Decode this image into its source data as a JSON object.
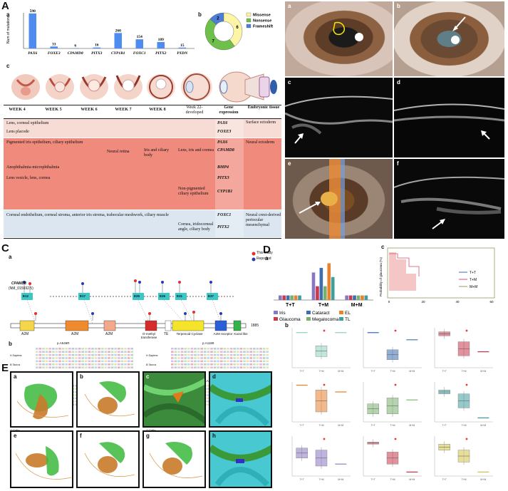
{
  "panels": {
    "A": "A",
    "B": "B",
    "C": "C",
    "D": "D",
    "E": "E"
  },
  "sublabels": {
    "a": "a",
    "b": "b",
    "c": "c",
    "d": "d",
    "e": "e",
    "f": "f",
    "g": "g",
    "h": "h"
  },
  "chart_data": [
    {
      "id": "Aa",
      "type": "bar",
      "ylabel": "Num of mutations",
      "categories": [
        "PAX6",
        "FOXE3",
        "CPAMD8",
        "PITX3",
        "CYP1B1",
        "FOXC1",
        "PITX2",
        "PXDN"
      ],
      "values": [
        590,
        33,
        6,
        16,
        260,
        154,
        109,
        15
      ],
      "ylim": [
        0,
        600
      ],
      "color": "#4f8cf0"
    },
    {
      "id": "Ab",
      "type": "pie",
      "legend": [
        "Missense",
        "Nonsense",
        "Frameshift"
      ],
      "values": [
        6,
        7,
        2
      ],
      "colors": [
        "#fdf5a6",
        "#6ec04b",
        "#4c7ed8"
      ]
    },
    {
      "id": "Da",
      "type": "bar",
      "categories": [
        "T+T",
        "T+M",
        "M+M"
      ],
      "series": [
        {
          "name": "Iris",
          "values": [
            1,
            6,
            1
          ]
        },
        {
          "name": "Glaucoma",
          "values": [
            1,
            3,
            1
          ]
        },
        {
          "name": "Cataract",
          "values": [
            1,
            7,
            1
          ]
        },
        {
          "name": "Megalocoma",
          "values": [
            1,
            3,
            1
          ]
        },
        {
          "name": "EL",
          "values": [
            1,
            8,
            1
          ]
        },
        {
          "name": "TL",
          "values": [
            1,
            5,
            1
          ]
        }
      ],
      "colors": [
        "#8a77c2",
        "#c9394a",
        "#3c6eb0",
        "#79b06c",
        "#e8822e",
        "#3f9e9e"
      ],
      "ylim": [
        0,
        9
      ]
    },
    {
      "id": "Dc",
      "type": "line",
      "ylabel": "Probability of glaucoma (%)",
      "xticks": [
        "0",
        "20",
        "40",
        "60"
      ],
      "yticks": [
        "0",
        "25",
        "50",
        "75",
        "100"
      ],
      "legend": [
        "T+T",
        "T+M",
        "M+M"
      ],
      "colors": [
        "#3c6eb0",
        "#d9506b",
        "#8aa060"
      ]
    }
  ],
  "table": {
    "weeks": [
      "WEEK 4",
      "WEEK 5",
      "WEEK 6",
      "WEEK 7",
      "WEEK 8",
      "Week 22-developed",
      "Gene expression",
      "Embryonic tissue"
    ],
    "rows": [
      {
        "text": "Lens, corneal epithelium",
        "gene": "PAX6",
        "tissue": "Surface ectoderm"
      },
      {
        "text": "Lens placode",
        "gene": "FOXE3",
        "tissue": ""
      },
      {
        "text": "Pigmented iris epithelium, ciliary epithelium",
        "gene": "PAX6",
        "tissue": "Neural ectoderm"
      },
      {
        "text": "",
        "mid1": "Neural retina",
        "mid2": "Iris and ciliary body",
        "mid3": "Lens, iris and cornea",
        "gene": "CPAMD8",
        "tissue": ""
      },
      {
        "text": "Anophthalmia-microphthalmia",
        "gene": "BMP4",
        "tissue": ""
      },
      {
        "text": "Lens vesicle, lens, cornea",
        "gene": "PITX3",
        "tissue": ""
      },
      {
        "text": "",
        "mid3": "Non-pigmented ciliary epithelium",
        "gene": "CYP1B1",
        "tissue": ""
      },
      {
        "text": "Corneal endothelium, corneal stroma, anterior iris stroma, trabecular meshwork, ciliary muscle",
        "gene": "FOXC1",
        "tissue": "Neural crest-derived periocular mesenchymal"
      },
      {
        "text": "",
        "mid3": "Cornea, iridocorneal angle, ciliary body",
        "gene": "PITX2",
        "tissue": ""
      }
    ]
  },
  "domain_c": {
    "gene": "CPAMD8",
    "accession": "(NM_015692.5)",
    "exons": [
      "E12",
      "E17",
      "E25",
      "E26",
      "E31",
      "E37"
    ],
    "domains": [
      "A2M",
      "A2M",
      "A2M",
      "O-methyl transferase",
      "TE",
      "Terpenoid Cyclase",
      "A2M receptor",
      "Kazal like"
    ],
    "length": "1885",
    "legend_study": "This study",
    "legend_reported": "Reported",
    "mut_labels": [
      "p.A546R",
      "p.A1189",
      "p.G1748",
      "p.A1196"
    ],
    "species": [
      "H.Sapiens",
      "B.Taurus",
      "X.Tropicalis",
      "D.rerio",
      "G.Gallus",
      "P.troglodytes",
      "C.lupus"
    ]
  },
  "photo_labels": [
    "a",
    "b",
    "c",
    "d",
    "e",
    "f"
  ],
  "boxplots": {
    "groups": [
      "T+T",
      "T+M",
      "M+M"
    ]
  }
}
